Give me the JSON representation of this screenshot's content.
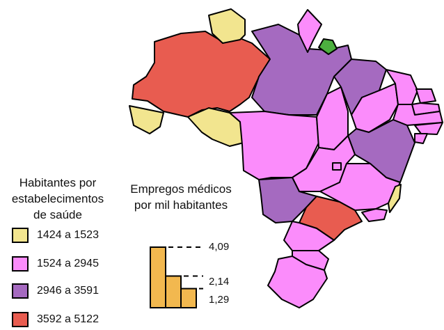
{
  "colors": {
    "tier1": "#f2e58f",
    "tier2": "#fb8cfb",
    "tier3": "#a56ac0",
    "tier4": "#e85c50",
    "special": "#4caf3f",
    "bar": "#f2b84f"
  },
  "legend": {
    "title_lines": [
      "Habitantes por",
      "estabelecimentos",
      "de saúde"
    ],
    "items": [
      {
        "label": "1424 a 1523",
        "color_key": "tier1"
      },
      {
        "label": "1524 a 2945",
        "color_key": "tier2"
      },
      {
        "label": "2946 a 3591",
        "color_key": "tier3"
      },
      {
        "label": "3592 a 5122",
        "color_key": "tier4"
      }
    ]
  },
  "bar_legend": {
    "title_lines": [
      "Empregos médicos",
      "por mil habitantes"
    ],
    "values": [
      {
        "label": "4,09",
        "value": 4.09
      },
      {
        "label": "2,14",
        "value": 2.14
      },
      {
        "label": "1,29",
        "value": 1.29
      }
    ]
  },
  "map": {
    "states": [
      {
        "name": "amazonas",
        "color_key": "tier4"
      },
      {
        "name": "roraima",
        "color_key": "tier1"
      },
      {
        "name": "acre",
        "color_key": "tier1"
      },
      {
        "name": "rondonia",
        "color_key": "tier1"
      },
      {
        "name": "para",
        "color_key": "tier3"
      },
      {
        "name": "amapa",
        "color_key": "tier2"
      },
      {
        "name": "marajo",
        "color_key": "special"
      },
      {
        "name": "mato-grosso",
        "color_key": "tier2"
      },
      {
        "name": "tocantins",
        "color_key": "tier2"
      },
      {
        "name": "maranhao",
        "color_key": "tier3"
      },
      {
        "name": "piaui",
        "color_key": "tier2"
      },
      {
        "name": "ceara",
        "color_key": "tier2"
      },
      {
        "name": "rio-grande-do-norte",
        "color_key": "tier2"
      },
      {
        "name": "paraiba",
        "color_key": "tier2"
      },
      {
        "name": "pernambuco",
        "color_key": "tier2"
      },
      {
        "name": "alagoas",
        "color_key": "tier2"
      },
      {
        "name": "sergipe",
        "color_key": "tier2"
      },
      {
        "name": "bahia",
        "color_key": "tier3"
      },
      {
        "name": "goias",
        "color_key": "tier2"
      },
      {
        "name": "distrito-federal",
        "color_key": "tier2"
      },
      {
        "name": "minas-gerais",
        "color_key": "tier2"
      },
      {
        "name": "espirito-santo",
        "color_key": "tier1"
      },
      {
        "name": "rio-de-janeiro",
        "color_key": "tier2"
      },
      {
        "name": "mato-grosso-do-sul",
        "color_key": "tier3"
      },
      {
        "name": "sao-paulo",
        "color_key": "tier4"
      },
      {
        "name": "parana",
        "color_key": "tier2"
      },
      {
        "name": "santa-catarina",
        "color_key": "tier2"
      },
      {
        "name": "rio-grande-do-sul",
        "color_key": "tier2"
      }
    ]
  }
}
